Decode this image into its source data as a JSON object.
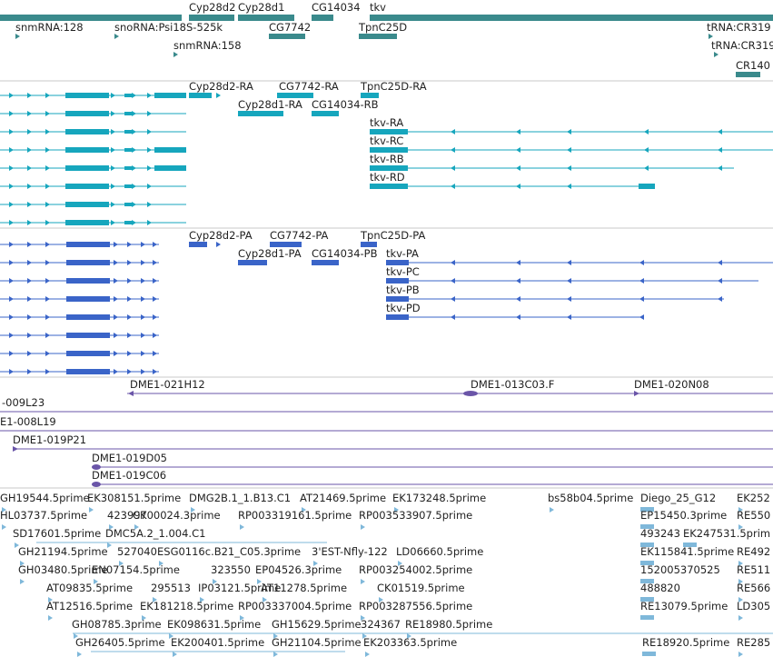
{
  "colors": {
    "gene": "#3a8a8c",
    "transcript": "#16a6bd",
    "protein": "#3a64c8",
    "clone": "#6a55a8",
    "est": "#7fb8da",
    "separator": "#c8c8c8",
    "text": "#222222"
  },
  "genes": {
    "labels": [
      "snmRNA:128",
      "snoRNA:Psi18S-525k",
      "snmRNA:158",
      "Cyp28d2",
      "Cyp28d1",
      "CG7742",
      "CG14034",
      "tkv",
      "TpnC25D",
      "tRNA:CR319",
      "tRNA:CR319",
      "CR140"
    ]
  },
  "transcripts": {
    "labels": [
      "Cyp28d2-RA",
      "CG7742-RA",
      "TpnC25D-RA",
      "Cyp28d1-RA",
      "CG14034-RB",
      "tkv-RA",
      "tkv-RC",
      "tkv-RB",
      "tkv-RD"
    ]
  },
  "proteins": {
    "labels": [
      "Cyp28d2-PA",
      "CG7742-PA",
      "TpnC25D-PA",
      "Cyp28d1-PA",
      "CG14034-PB",
      "tkv-PA",
      "tkv-PC",
      "tkv-PB",
      "tkv-PD"
    ]
  },
  "clones": {
    "labels": [
      "DME1-021H12",
      "DME1-013C03.F",
      "DME1-020N08",
      "-009L23",
      "E1-008L19",
      "DME1-019P21",
      "DME1-019D05",
      "DME1-019C06"
    ]
  },
  "ests": {
    "labels": [
      "GH19544.5prime",
      "EK308151.5prime",
      "DMG2B.1_1.B13.C1",
      "AT21469.5prime",
      "EK173248.5prime",
      "bs58b04.5prime",
      "Diego_25_G12",
      "EK252",
      "HL03737.5prime",
      "423997",
      "CK00024.3prime",
      "RP003319161.5prime",
      "RP003533907.5prime",
      "EP15450.3prime",
      "RE550",
      "SD17601.5prime",
      "DMC5A.2_1.004.C1",
      "493243",
      "EK247531.5prim",
      "GH21194.5prime",
      "527040",
      "ESG0116c.B21_C05.3prime",
      "3'EST-Nfly-122",
      "LD06660.5prime",
      "EK115841.5prime",
      "RE492",
      "GH03480.5prime",
      "EN07154.5prime",
      "323550",
      "EP04526.3prime",
      "RP003254002.5prime",
      "152005370525",
      "RE511",
      "AT09835.5prime",
      "295513",
      "IP03121.5prime",
      "AT11278.5prime",
      "CK01519.5prime",
      "488820",
      "RE566",
      "AT12516.5prime",
      "EK181218.5prime",
      "RP003337004.5prime",
      "RP003287556.5prime",
      "RE13079.5prime",
      "LD305",
      "GH08785.3prime",
      "EK098631.5prime",
      "GH15629.5prime",
      "324367",
      "RE18980.5prime",
      "GH26405.5prime",
      "EK200401.5prime",
      "GH21104.5prime",
      "EK203363.5prime",
      "RE18920.5prime",
      "RE285"
    ]
  }
}
